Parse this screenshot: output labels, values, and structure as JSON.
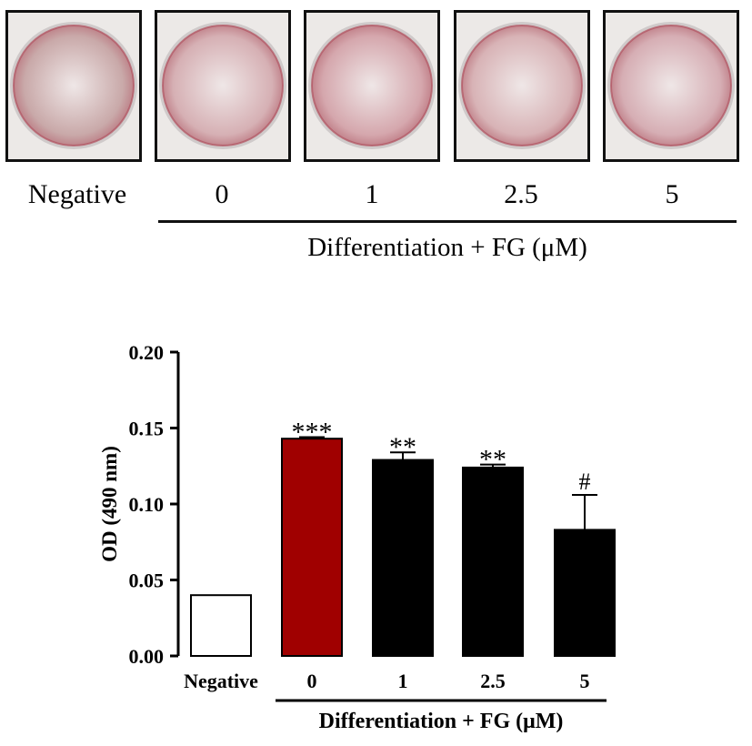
{
  "photos": {
    "conditions": [
      "Negative",
      "0",
      "1",
      "2.5",
      "5"
    ],
    "group_label": "Differentiation + FG (μM)",
    "stain_colors": [
      "#c9a9a9",
      "#d6b0b4",
      "#d5a7ad",
      "#d8b3b6",
      "#d6aeb4"
    ]
  },
  "chart_data": {
    "type": "bar",
    "categories": [
      "Negative",
      "0",
      "1",
      "2.5",
      "5"
    ],
    "values": [
      0.04,
      0.143,
      0.129,
      0.124,
      0.083
    ],
    "errors": [
      0.0,
      0.001,
      0.005,
      0.002,
      0.023
    ],
    "significance": [
      "",
      "***",
      "**",
      "**",
      "#"
    ],
    "bar_colors": [
      "#ffffff",
      "#a00000",
      "#000000",
      "#000000",
      "#000000"
    ],
    "ylabel": "OD (490 nm)",
    "ylim": [
      0,
      0.2
    ],
    "yticks": [
      "0.00",
      "0.05",
      "0.10",
      "0.15",
      "0.20"
    ],
    "group_label": "Differentiation + FG (μM)",
    "grid": false
  }
}
